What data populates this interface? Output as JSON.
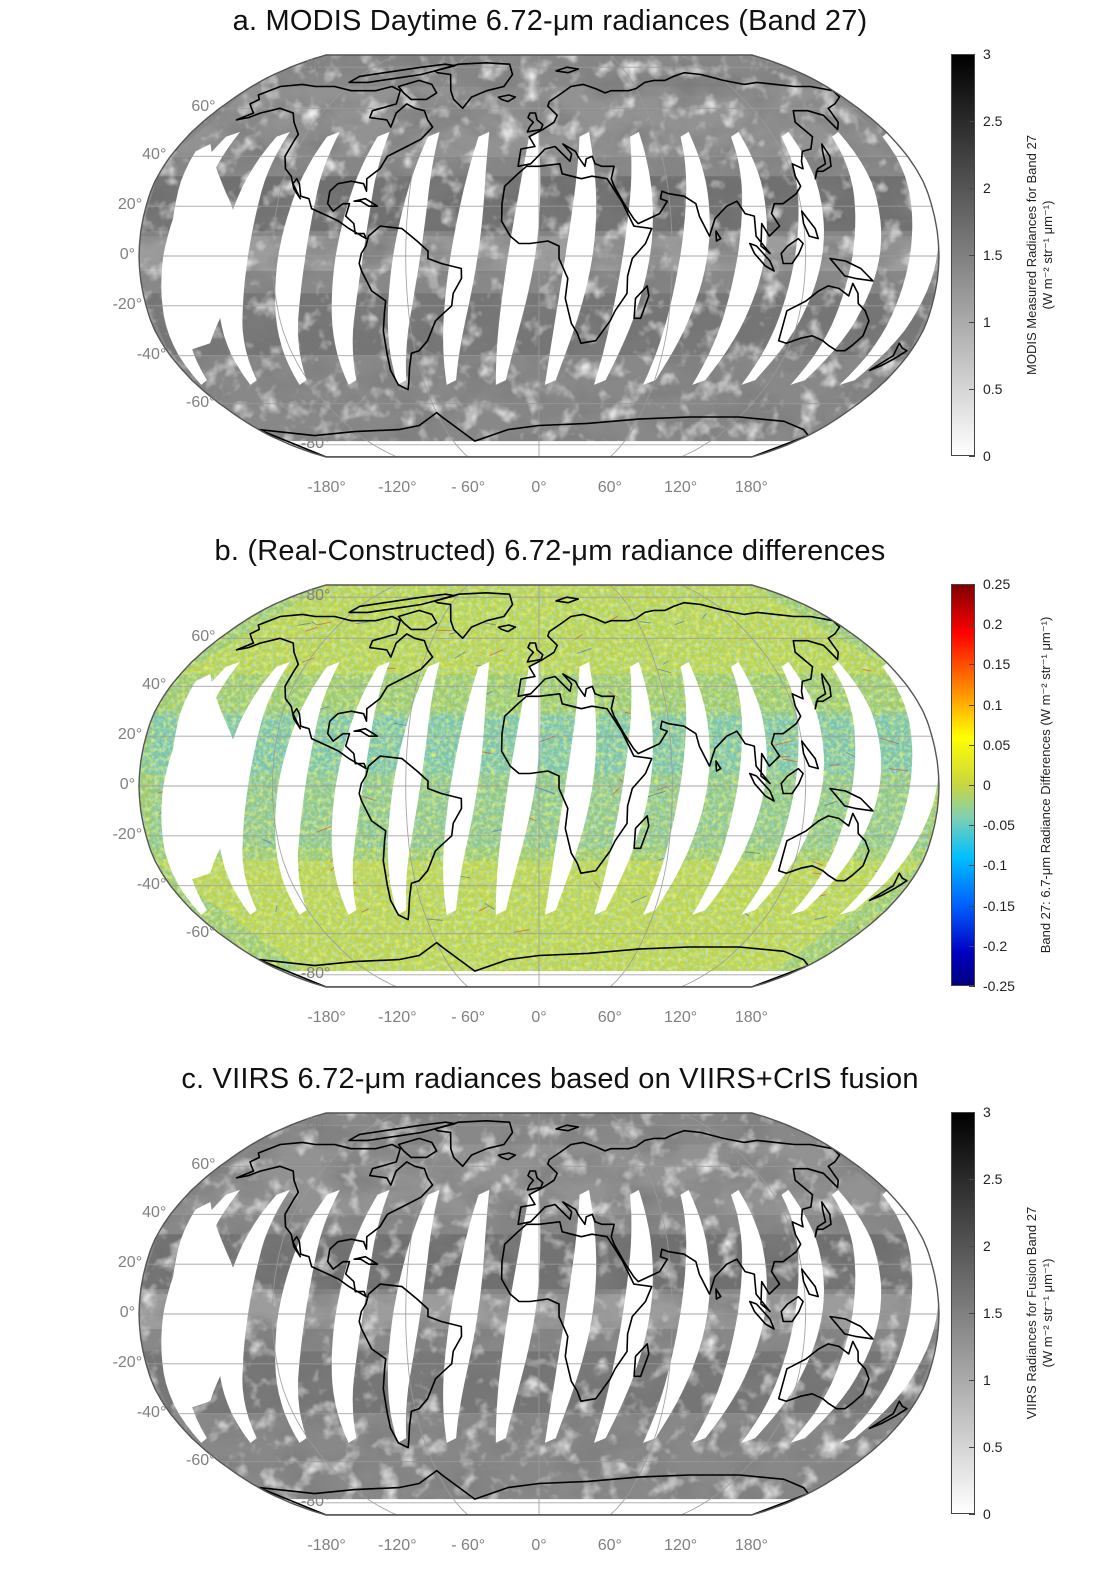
{
  "map_data": {
    "projection": "Robinson",
    "lat_ticks": [
      "80",
      "60",
      "40",
      "20",
      "0",
      "-20",
      "-40",
      "-60",
      "-80"
    ],
    "lon_ticks": [
      "-180",
      "-120",
      "- 60",
      "0",
      "60",
      "120",
      "180"
    ],
    "degree_symbol": "°",
    "swath_count": 14,
    "colors": {
      "grid": "#9a9a9a",
      "coast": "#000000",
      "frame": "#555555",
      "gap": "#ffffff"
    }
  },
  "panels": [
    {
      "title": "a. MODIS Daytime 6.72-μm radiances (Band 27)",
      "field": "grayscale",
      "colorbar": {
        "colormap": "gray-reverse",
        "ticks": [
          "3",
          "2.5",
          "2",
          "1.5",
          "1",
          "0.5",
          "0"
        ],
        "range": [
          0,
          3
        ],
        "label_line1": "MODIS Measured Radiances for Band 27",
        "label_line2": "(W m⁻² str⁻¹ μm⁻¹)"
      }
    },
    {
      "title": "b. (Real-Constructed) 6.72-μm radiance differences",
      "field": "differences",
      "colorbar": {
        "colormap": "jet",
        "ticks": [
          "0.25",
          "0.2",
          "0.15",
          "0.1",
          "0.05",
          "0",
          "-0.05",
          "-0.1",
          "-0.15",
          "-0.2",
          "-0.25"
        ],
        "range": [
          -0.25,
          0.25
        ],
        "label_line1": "Band 27: 6.7-μm Radiance Differences (W m⁻² str⁻¹ μm⁻¹)",
        "label_line2": ""
      }
    },
    {
      "title": "c. VIIRS 6.72-μm radiances based on VIIRS+CrIS fusion",
      "field": "grayscale",
      "colorbar": {
        "colormap": "gray-reverse",
        "ticks": [
          "3",
          "2.5",
          "2",
          "1.5",
          "1",
          "0.5",
          "0"
        ],
        "range": [
          0,
          3
        ],
        "label_line1": "VIIRS Radiances for Fusion Band 27",
        "label_line2": "(W m⁻² str⁻¹ μm⁻¹)"
      }
    }
  ]
}
